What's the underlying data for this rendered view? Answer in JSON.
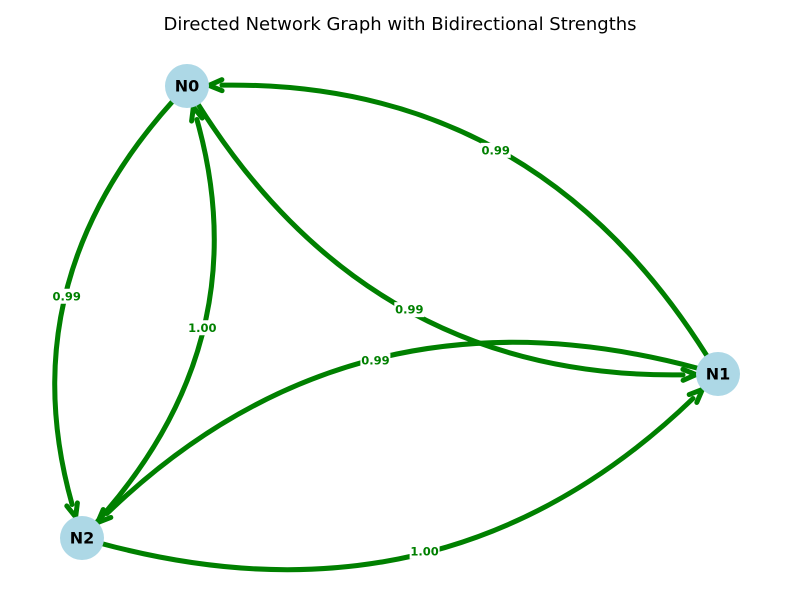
{
  "title": "Directed Network Graph with Bidirectional Strengths",
  "colors": {
    "edge": "#008000",
    "node_fill": "#add8e6",
    "label_background": "#ffffff"
  },
  "nodes": [
    {
      "id": "N0",
      "label": "N0"
    },
    {
      "id": "N1",
      "label": "N1"
    },
    {
      "id": "N2",
      "label": "N2"
    }
  ],
  "edges": [
    {
      "id": "n0-n1",
      "source": "N0",
      "target": "N1",
      "weight": "0.99"
    },
    {
      "id": "n1-n0",
      "source": "N1",
      "target": "N0",
      "weight": "0.99"
    },
    {
      "id": "n0-n2",
      "source": "N0",
      "target": "N2",
      "weight": "0.99"
    },
    {
      "id": "n2-n0",
      "source": "N2",
      "target": "N0",
      "weight": "1.00"
    },
    {
      "id": "n1-n2",
      "source": "N1",
      "target": "N2",
      "weight": "0.99"
    },
    {
      "id": "n2-n1",
      "source": "N2",
      "target": "N1",
      "weight": "1.00"
    }
  ]
}
